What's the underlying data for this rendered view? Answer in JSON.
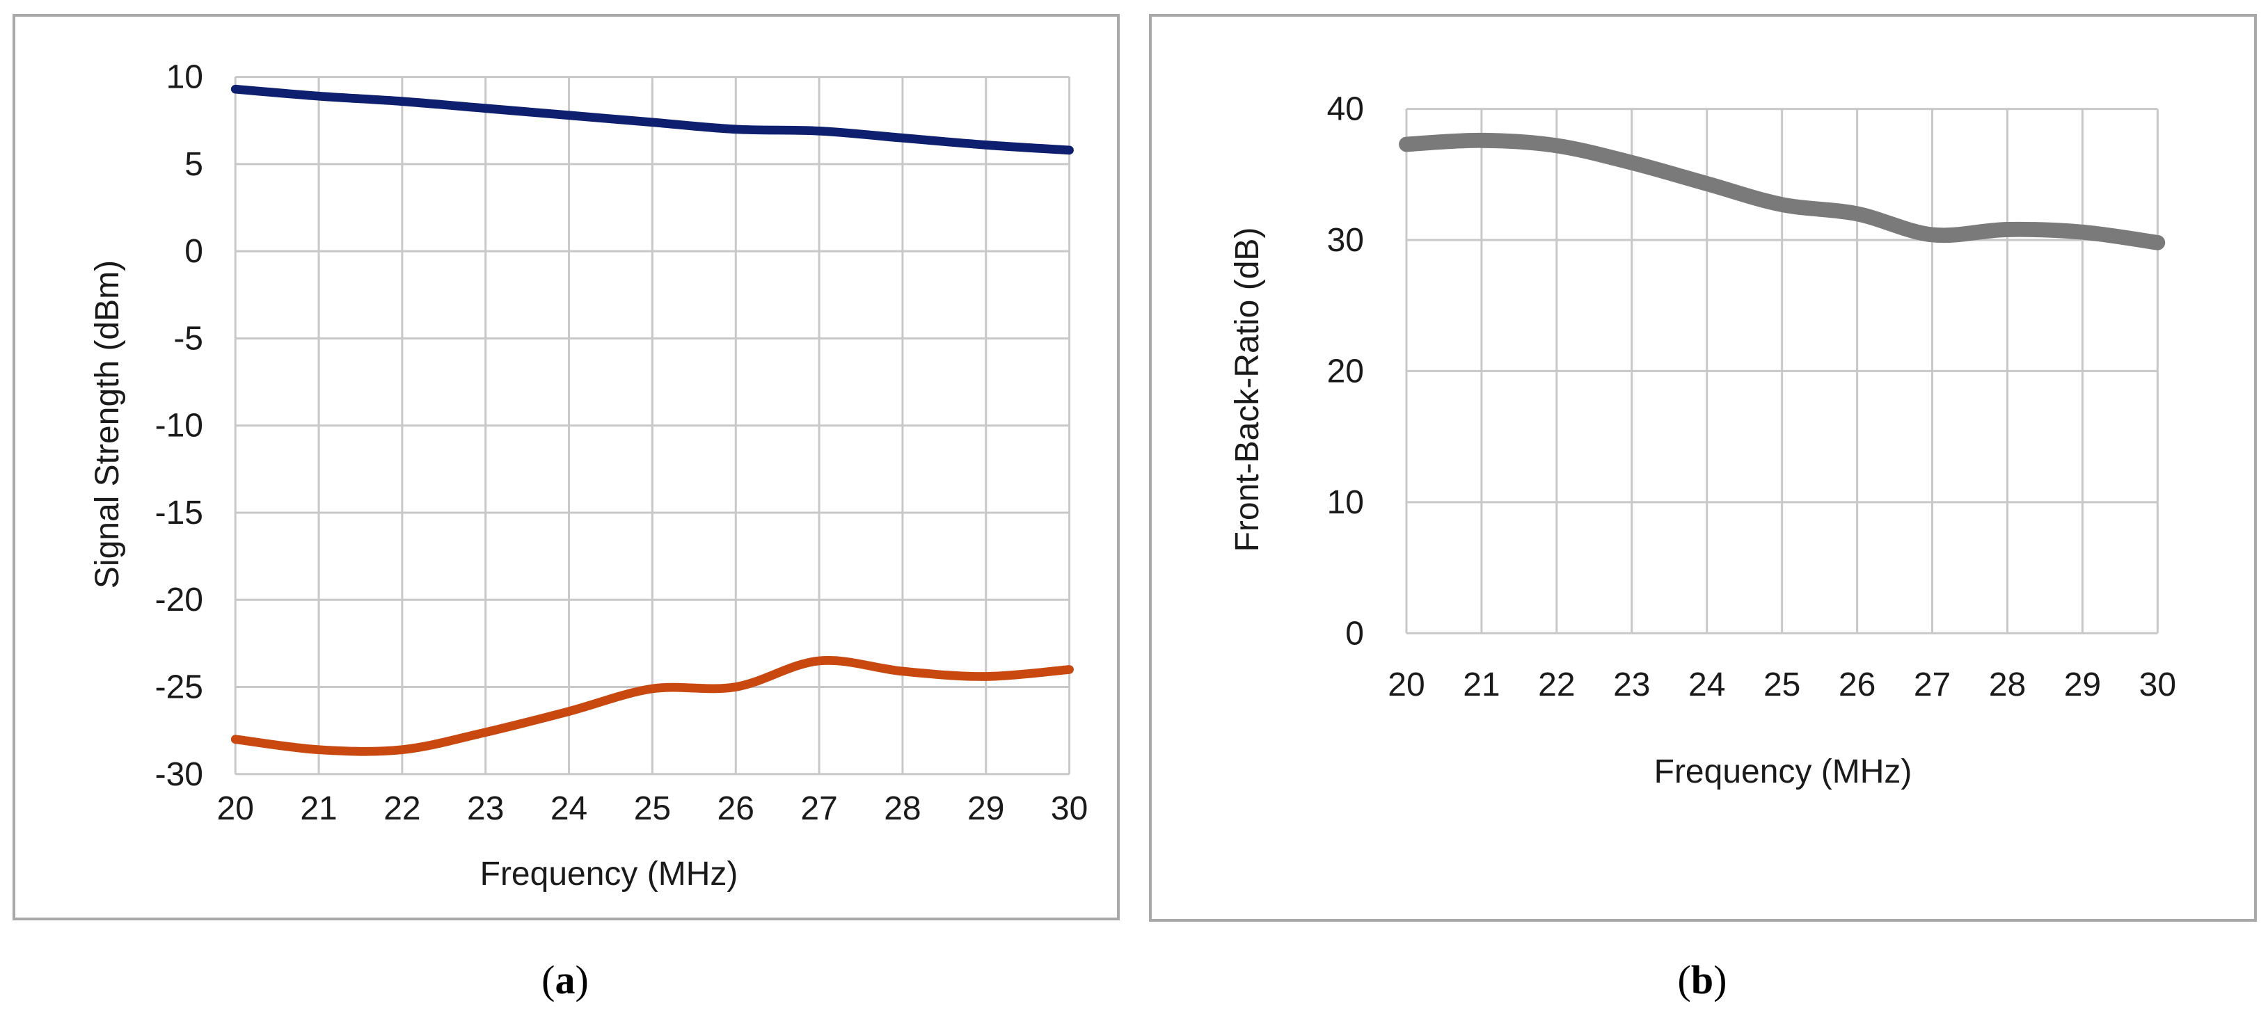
{
  "chart_data": [
    {
      "type": "line",
      "panel_label": "(a)",
      "panel_letter": "a",
      "xlabel": "Frequency (MHz)",
      "ylabel": "Signal Strength (dBm)",
      "xlim": [
        20,
        30
      ],
      "ylim": [
        -30,
        10
      ],
      "x_ticks": [
        20,
        21,
        22,
        23,
        24,
        25,
        26,
        27,
        28,
        29,
        30
      ],
      "y_ticks": [
        10,
        5,
        0,
        -5,
        -10,
        -15,
        -20,
        -25,
        -30
      ],
      "grid": true,
      "x": [
        20,
        21,
        22,
        23,
        24,
        25,
        26,
        27,
        28,
        29,
        30
      ],
      "series": [
        {
          "color": "#0d1f6e",
          "values": [
            9.3,
            8.9,
            8.6,
            8.2,
            7.8,
            7.4,
            7.0,
            6.9,
            6.5,
            6.1,
            5.8
          ]
        },
        {
          "color": "#c84810",
          "values": [
            -28.0,
            -28.6,
            -28.6,
            -27.6,
            -26.4,
            -25.1,
            -25.0,
            -23.5,
            -24.1,
            -24.4,
            -24.0
          ]
        }
      ]
    },
    {
      "type": "line",
      "panel_label": "(b)",
      "panel_letter": "b",
      "xlabel": "Frequency (MHz)",
      "ylabel": "Front-Back-Ratio (dB)",
      "xlim": [
        20,
        30
      ],
      "ylim": [
        0,
        40
      ],
      "x_ticks": [
        20,
        21,
        22,
        23,
        24,
        25,
        26,
        27,
        28,
        29,
        30
      ],
      "y_ticks": [
        40,
        30,
        20,
        10,
        0
      ],
      "grid": true,
      "x": [
        20,
        21,
        22,
        23,
        24,
        25,
        26,
        27,
        28,
        29,
        30
      ],
      "series": [
        {
          "color": "#7a7a7a",
          "values": [
            37.3,
            37.6,
            37.2,
            35.9,
            34.3,
            32.7,
            32.0,
            30.4,
            30.8,
            30.6,
            29.8
          ]
        }
      ]
    }
  ]
}
